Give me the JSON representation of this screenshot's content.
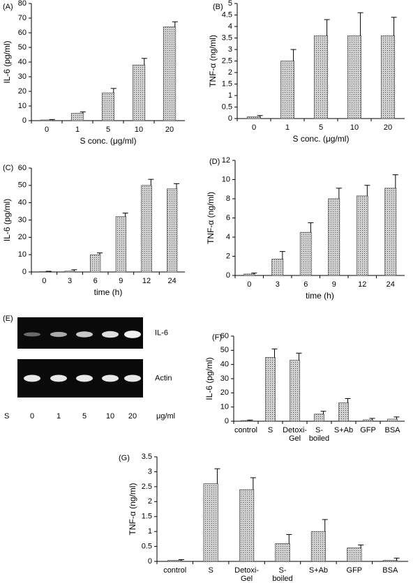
{
  "chart_data": [
    {
      "type": "bar",
      "label": "(A)",
      "ylabel": "IL-6 (pg/ml)",
      "xlabel": "S conc. (μg/ml)",
      "categories": [
        "0",
        "1",
        "5",
        "10",
        "20"
      ],
      "values": [
        0.5,
        5,
        19,
        38,
        64
      ],
      "errors": [
        0.3,
        1,
        3,
        4.5,
        3.5
      ],
      "ylim": [
        0,
        80
      ],
      "yticks": [
        0,
        10,
        20,
        30,
        40,
        50,
        60,
        70,
        80
      ]
    },
    {
      "type": "bar",
      "label": "(B)",
      "ylabel": "TNF-α (ng/ml)",
      "xlabel": "S conc. (μg/ml)",
      "categories": [
        "0",
        "1",
        "5",
        "10",
        "20"
      ],
      "values": [
        0.08,
        2.5,
        3.6,
        3.6,
        3.6
      ],
      "errors": [
        0.05,
        0.5,
        0.7,
        1.0,
        0.8
      ],
      "ylim": [
        0,
        5
      ],
      "yticks": [
        0,
        0.5,
        1,
        1.5,
        2,
        2.5,
        3,
        3.5,
        4,
        4.5,
        5
      ]
    },
    {
      "type": "bar",
      "label": "(C)",
      "ylabel": "IL-6 (pg/ml)",
      "xlabel": "time (h)",
      "categories": [
        "0",
        "3",
        "6",
        "9",
        "12",
        "24"
      ],
      "values": [
        0.2,
        0.5,
        10,
        32,
        50,
        48
      ],
      "errors": [
        0.2,
        0.8,
        1,
        2,
        3.5,
        3
      ],
      "ylim": [
        0,
        60
      ],
      "yticks": [
        0,
        10,
        20,
        30,
        40,
        50,
        60
      ]
    },
    {
      "type": "bar",
      "label": "(D)",
      "ylabel": "TNF-α (ng/ml)",
      "xlabel": "time (h)",
      "categories": [
        "0",
        "3",
        "6",
        "9",
        "12",
        "24"
      ],
      "values": [
        0.15,
        1.7,
        4.5,
        8,
        8.3,
        9.1
      ],
      "errors": [
        0.1,
        0.8,
        1,
        1.1,
        1.1,
        1.4
      ],
      "ylim": [
        0,
        12
      ],
      "yticks": [
        0,
        2,
        4,
        6,
        8,
        10,
        12
      ]
    },
    {
      "type": "gel",
      "label": "(E)",
      "bands": [
        "IL-6",
        "Actin"
      ],
      "row_label": "S",
      "lanes": [
        "0",
        "1",
        "5",
        "10",
        "20"
      ],
      "unit": "μg/ml"
    },
    {
      "type": "bar",
      "label": "(F)",
      "ylabel": "IL-6 (pg/ml)",
      "categories": [
        "control",
        "S",
        "Detoxi-\nGel",
        "S-\nboiled",
        "S+Ab",
        "GFP",
        "BSA"
      ],
      "values": [
        0.5,
        45,
        43,
        5,
        13,
        1,
        1.5
      ],
      "errors": [
        0.3,
        6,
        5,
        2,
        3,
        1,
        1.5
      ],
      "ylim": [
        0,
        60
      ],
      "yticks": [
        0,
        10,
        20,
        30,
        40,
        50,
        60
      ]
    },
    {
      "type": "bar",
      "label": "(G)",
      "ylabel": "TNF-α (ng/ml)",
      "categories": [
        "control",
        "S",
        "Detoxi-\nGel",
        "S-\nboiled",
        "S+Ab",
        "GFP",
        "BSA"
      ],
      "values": [
        0.03,
        2.6,
        2.4,
        0.6,
        1.0,
        0.45,
        0.03
      ],
      "errors": [
        0.03,
        0.5,
        0.4,
        0.3,
        0.4,
        0.1,
        0.08
      ],
      "ylim": [
        0,
        3.5
      ],
      "yticks": [
        0,
        0.5,
        1,
        1.5,
        2,
        2.5,
        3,
        3.5
      ]
    }
  ]
}
